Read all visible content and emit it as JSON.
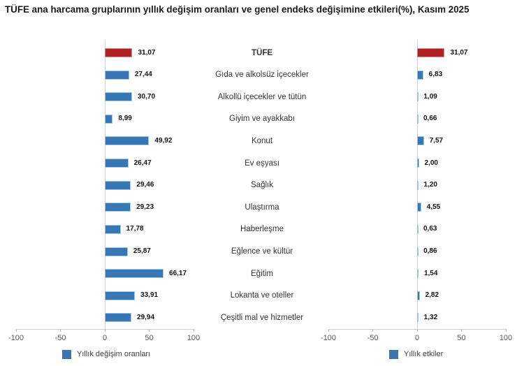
{
  "title": "TÜFE ana harcama gruplarının yıllık değişim oranları ve genel endeks değişimine etkileri(%), Kasım 2025",
  "colors": {
    "bar": "#3778B4",
    "bar_border": "#9EC6E4",
    "highlight": "#B02125",
    "highlight_border": "#CB8E91",
    "axis_line": "#CFCFCF",
    "axis_text": "#595959"
  },
  "legend": {
    "left": "Yıllık değişim oranları",
    "right": "Yıllık etkiler"
  },
  "chart_data": {
    "type": "bar",
    "orientation": "horizontal",
    "title": "TÜFE ana harcama gruplarının yıllık değişim oranları ve genel endeks değişimine etkileri(%), Kasım 2025",
    "categories": [
      "TÜFE",
      "Gıda ve alkolsüz içecekler",
      "Alkollü içecekler ve tütün",
      "Giyim ve ayakkabı",
      "Konut",
      "Ev eşyası",
      "Sağlık",
      "Ulaştırma",
      "Haberleşme",
      "Eğlence ve kültür",
      "Eğitim",
      "Lokanta ve oteller",
      "Çeşitli mal ve hizmetler"
    ],
    "series": [
      {
        "name": "Yıllık değişim oranları",
        "values": [
          31.07,
          27.44,
          30.7,
          8.99,
          49.92,
          26.47,
          29.46,
          29.23,
          17.78,
          25.87,
          66.17,
          33.91,
          29.94
        ],
        "labels": [
          "31,07",
          "27,44",
          "30,70",
          "8,99",
          "49,92",
          "26,47",
          "29,46",
          "29,23",
          "17,78",
          "25,87",
          "66,17",
          "33,91",
          "29,94"
        ]
      },
      {
        "name": "Yıllık etkiler",
        "values": [
          31.07,
          6.83,
          1.09,
          0.66,
          7.57,
          2.0,
          1.2,
          4.55,
          0.63,
          0.86,
          1.54,
          2.82,
          1.32
        ],
        "labels": [
          "31,07",
          "6,83",
          "1,09",
          "0,66",
          "7,57",
          "2,00",
          "1,20",
          "4,55",
          "0,63",
          "0,86",
          "1,54",
          "2,82",
          "1,32"
        ]
      }
    ],
    "highlight_index": 0,
    "xlim": [
      -100,
      100
    ],
    "x_ticks": [
      -100,
      -50,
      0,
      50,
      100
    ],
    "tick_labels": [
      "-100",
      "-50",
      "0",
      "50",
      "100"
    ],
    "grid": false,
    "legend_position": "bottom"
  }
}
